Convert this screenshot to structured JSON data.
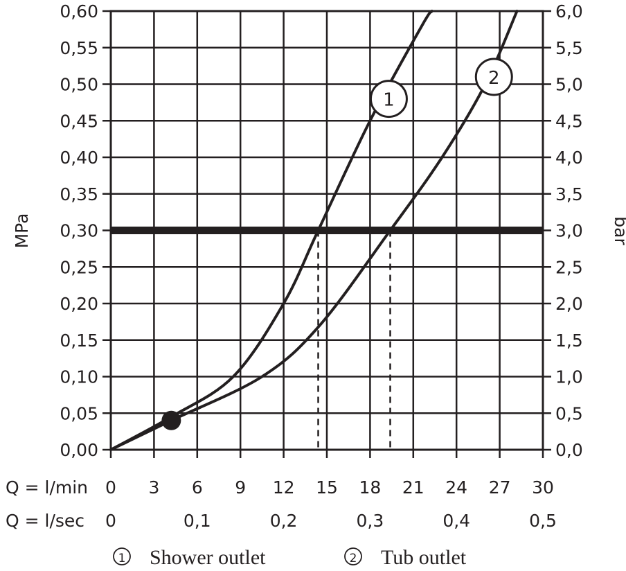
{
  "chart_data": {
    "type": "line",
    "left_axis": {
      "title": "MPa",
      "range": [
        0,
        0.6
      ],
      "ticks": [
        "0,00",
        "0,05",
        "0,10",
        "0,15",
        "0,20",
        "0,25",
        "0,30",
        "0,35",
        "0,40",
        "0,45",
        "0,50",
        "0,55",
        "0,60"
      ]
    },
    "right_axis": {
      "title": "bar",
      "range": [
        0,
        6
      ],
      "ticks": [
        "0,0",
        "0,5",
        "1,0",
        "1,5",
        "2,0",
        "2,5",
        "3,0",
        "3,5",
        "4,0",
        "4,5",
        "5,0",
        "5,5",
        "6,0"
      ]
    },
    "x_axis_lmin": {
      "label": "Q = l/min",
      "range": [
        0,
        30
      ],
      "ticks": [
        {
          "v": 0,
          "t": "0"
        },
        {
          "v": 3,
          "t": "3"
        },
        {
          "v": 6,
          "t": "6"
        },
        {
          "v": 9,
          "t": "9"
        },
        {
          "v": 12,
          "t": "12"
        },
        {
          "v": 15,
          "t": "15"
        },
        {
          "v": 18,
          "t": "18"
        },
        {
          "v": 21,
          "t": "21"
        },
        {
          "v": 24,
          "t": "24"
        },
        {
          "v": 27,
          "t": "27"
        },
        {
          "v": 30,
          "t": "30"
        }
      ]
    },
    "x_axis_lsec": {
      "label": "Q = l/sec",
      "ticks": [
        {
          "v": 0,
          "t": "0"
        },
        {
          "v": 6,
          "t": "0,1"
        },
        {
          "v": 12,
          "t": "0,2"
        },
        {
          "v": 18,
          "t": "0,3"
        },
        {
          "v": 24,
          "t": "0,4"
        },
        {
          "v": 30,
          "t": "0,5"
        }
      ]
    },
    "reference_line_mpa": 0.3,
    "marker_point": {
      "x": 4.2,
      "y": 0.04
    },
    "series": [
      {
        "name": "Shower outlet",
        "number": "1",
        "x": [
          0,
          4.2,
          8.5,
          12,
          14.4,
          18,
          21.6,
          22.3
        ],
        "y": [
          0,
          0.045,
          0.1,
          0.2,
          0.3,
          0.45,
          0.58,
          0.6
        ]
      },
      {
        "name": "Tub outlet",
        "number": "2",
        "x": [
          0,
          4.2,
          10.5,
          14.5,
          19.4,
          23,
          26,
          28.2
        ],
        "y": [
          0,
          0.04,
          0.1,
          0.17,
          0.3,
          0.4,
          0.5,
          0.6
        ]
      }
    ],
    "intersections_at_ref": [
      14.4,
      19.4
    ],
    "legend": [
      {
        "symbol": "1",
        "label": "Shower outlet"
      },
      {
        "symbol": "2",
        "label": "Tub outlet"
      }
    ]
  },
  "colors": {
    "ink": "#231f20",
    "background": "#ffffff"
  }
}
